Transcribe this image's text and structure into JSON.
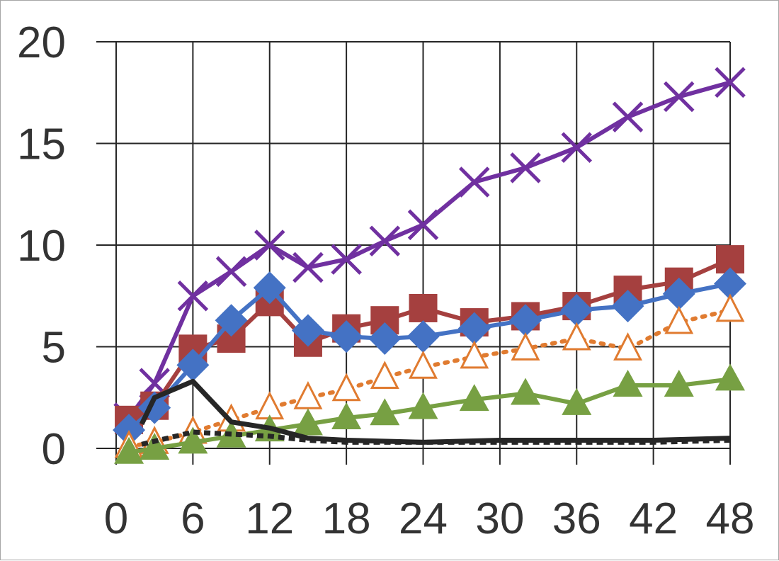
{
  "chart_data": {
    "type": "line",
    "title": "",
    "xlabel": "",
    "ylabel": "",
    "xlim": [
      0,
      48
    ],
    "ylim": [
      0,
      20
    ],
    "x_ticks": [
      "0",
      "6",
      "12",
      "18",
      "24",
      "30",
      "36",
      "42",
      "48"
    ],
    "y_ticks": [
      "0",
      "5",
      "10",
      "15",
      "20"
    ],
    "grid": true,
    "legend": "none",
    "series": [
      {
        "name": "purple-x",
        "color": "#7030a0",
        "marker": "x",
        "line": "solid",
        "x": [
          1,
          3,
          6,
          9,
          12,
          15,
          18,
          21,
          24,
          28,
          32,
          36,
          40,
          44,
          48
        ],
        "y": [
          1.5,
          3.2,
          7.5,
          8.7,
          10.0,
          8.9,
          9.3,
          10.2,
          11.0,
          13.1,
          13.8,
          14.8,
          16.3,
          17.3,
          18.0
        ]
      },
      {
        "name": "red-square",
        "color": "#a5403f",
        "marker": "square",
        "line": "solid",
        "x": [
          1,
          3,
          6,
          9,
          12,
          15,
          18,
          21,
          24,
          28,
          32,
          36,
          40,
          44,
          48
        ],
        "y": [
          1.4,
          2.1,
          4.9,
          5.4,
          7.2,
          5.2,
          5.9,
          6.3,
          6.9,
          6.2,
          6.5,
          7.0,
          7.8,
          8.2,
          9.3
        ]
      },
      {
        "name": "blue-diamond",
        "color": "#4472c4",
        "marker": "diamond",
        "line": "solid",
        "x": [
          1,
          3,
          6,
          9,
          12,
          15,
          18,
          21,
          24,
          28,
          32,
          36,
          40,
          44,
          48
        ],
        "y": [
          0.9,
          2.0,
          4.1,
          6.3,
          7.9,
          5.8,
          5.5,
          5.4,
          5.5,
          5.9,
          6.3,
          6.8,
          7.0,
          7.6,
          8.1
        ]
      },
      {
        "name": "orange-open-triangle",
        "color": "#e07b30",
        "marker": "open-triangle",
        "line": "dotted",
        "x": [
          1,
          3,
          6,
          9,
          12,
          15,
          18,
          21,
          24,
          28,
          32,
          36,
          40,
          44,
          48
        ],
        "y": [
          0.1,
          0.3,
          0.8,
          1.4,
          2.0,
          2.5,
          2.9,
          3.5,
          4.0,
          4.5,
          4.9,
          5.4,
          4.9,
          6.2,
          6.8
        ]
      },
      {
        "name": "green-triangle",
        "color": "#77a043",
        "marker": "triangle",
        "line": "solid",
        "x": [
          1,
          3,
          6,
          9,
          12,
          15,
          18,
          21,
          24,
          28,
          32,
          36,
          40,
          44,
          48
        ],
        "y": [
          -0.2,
          0.0,
          0.3,
          0.6,
          0.9,
          1.2,
          1.5,
          1.7,
          2.0,
          2.4,
          2.7,
          2.2,
          3.1,
          3.1,
          3.4
        ]
      },
      {
        "name": "black-solid",
        "color": "#262626",
        "marker": "none",
        "line": "solid",
        "x": [
          2,
          3,
          6,
          9,
          12,
          15,
          18,
          24,
          30,
          36,
          42,
          48
        ],
        "y": [
          1.2,
          2.5,
          3.3,
          1.3,
          1.0,
          0.5,
          0.4,
          0.3,
          0.4,
          0.4,
          0.4,
          0.5
        ]
      },
      {
        "name": "black-dotted",
        "color": "#262626",
        "marker": "none",
        "line": "dotted",
        "x": [
          2,
          6,
          9,
          12,
          15,
          18,
          24,
          30,
          36,
          42,
          48
        ],
        "y": [
          0.2,
          0.8,
          0.7,
          0.6,
          0.4,
          0.3,
          0.3,
          0.3,
          0.3,
          0.3,
          0.4
        ]
      }
    ]
  }
}
